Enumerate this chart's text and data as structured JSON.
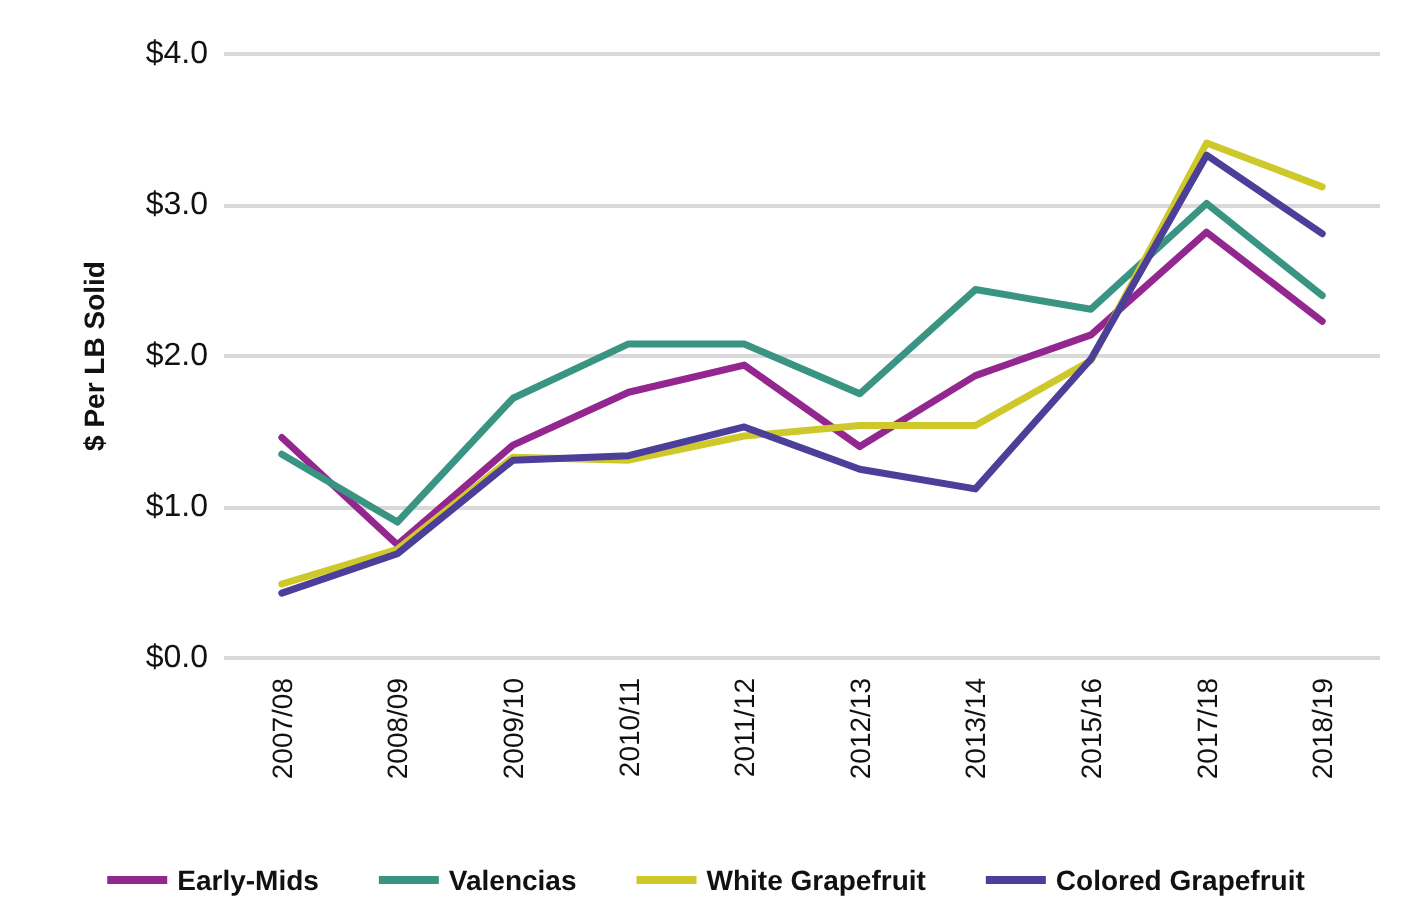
{
  "chart_data": {
    "type": "line",
    "ylabel": "$ Per LB Solid",
    "categories": [
      "2007/08",
      "2008/09",
      "2009/10",
      "2010/11",
      "2011/12",
      "2012/13",
      "2013/14",
      "2015/16",
      "2017/18",
      "2018/19"
    ],
    "series": [
      {
        "name": "Early-Mids",
        "color": "#93278f",
        "values": [
          1.46,
          0.75,
          1.41,
          1.76,
          1.94,
          1.4,
          1.87,
          2.14,
          2.82,
          2.23
        ]
      },
      {
        "name": "Valencias",
        "color": "#3a9482",
        "values": [
          1.35,
          0.9,
          1.72,
          2.08,
          2.08,
          1.75,
          2.44,
          2.31,
          3.01,
          2.4
        ]
      },
      {
        "name": "White Grapefruit",
        "color": "#cfc82a",
        "values": [
          0.49,
          0.72,
          1.33,
          1.31,
          1.47,
          1.54,
          1.54,
          1.97,
          3.41,
          3.12
        ]
      },
      {
        "name": "Colored Grapefruit",
        "color": "#4b3f9a",
        "values": [
          0.43,
          0.69,
          1.31,
          1.34,
          1.53,
          1.25,
          1.12,
          1.98,
          3.33,
          2.81
        ]
      }
    ],
    "ylim": [
      0,
      4
    ],
    "yticks": [
      {
        "value": 0,
        "label": "$0.0"
      },
      {
        "value": 1,
        "label": "$1.0"
      },
      {
        "value": 2,
        "label": "$2.0"
      },
      {
        "value": 3,
        "label": "$3.0"
      },
      {
        "value": 4,
        "label": "$4.0"
      }
    ],
    "grid": "y",
    "legend": "bottom",
    "marker": "none",
    "line_style": "solid"
  }
}
